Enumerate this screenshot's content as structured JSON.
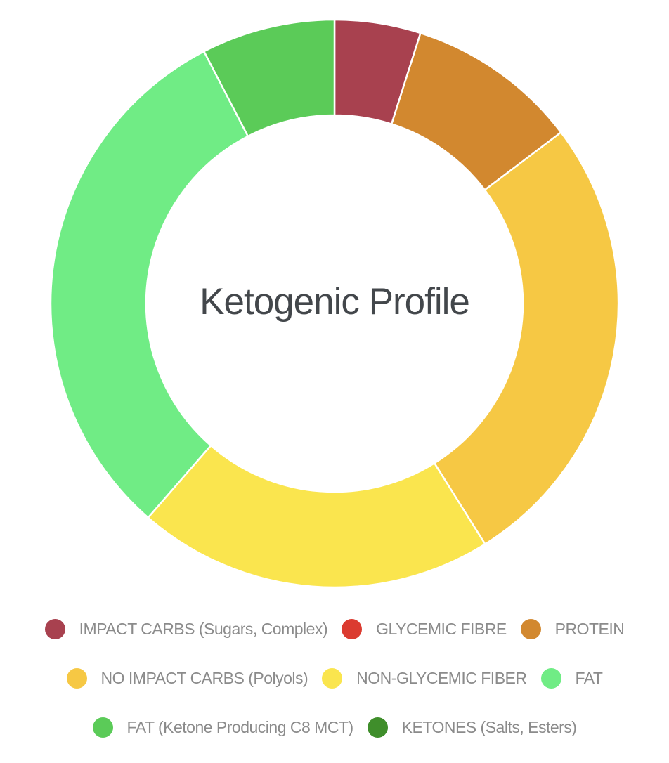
{
  "chart_data": {
    "type": "pie",
    "subtype": "donut",
    "title": "Ketogenic Profile",
    "legend_position": "bottom",
    "start_angle_deg": 0,
    "direction": "clockwise",
    "cutout_ratio": 0.66,
    "values_are": "percent of ring, estimated from arc angles",
    "series": [
      {
        "label": "IMPACT CARBS (Sugars, Complex)",
        "value": 4.9,
        "color": "#a8414f"
      },
      {
        "label": "GLYCEMIC FIBRE",
        "value": 0,
        "color": "#db3b30"
      },
      {
        "label": "PROTEIN",
        "value": 9.8,
        "color": "#d2882f"
      },
      {
        "label": "NO IMPACT CARBS (Polyols)",
        "value": 26.4,
        "color": "#f6c844"
      },
      {
        "label": "NON-GLYCEMIC FIBER",
        "value": 20.3,
        "color": "#fae54e"
      },
      {
        "label": "FAT",
        "value": 31.0,
        "color": "#70ec85"
      },
      {
        "label": "FAT (Ketone Producing C8 MCT)",
        "value": 7.6,
        "color": "#5bcb58"
      },
      {
        "label": "KETONES (Salts, Esters)",
        "value": 0,
        "color": "#3f8e2b"
      }
    ]
  }
}
